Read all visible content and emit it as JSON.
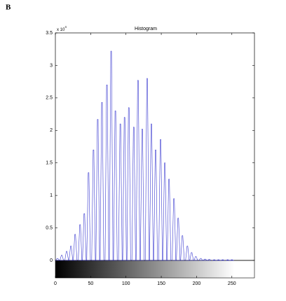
{
  "panel_label": "B",
  "chart_data": {
    "type": "spike",
    "title": "Histogram",
    "y_multiplier": {
      "base": "x 10",
      "exponent": "4"
    },
    "x": [
      3,
      9,
      16,
      22,
      28,
      35,
      41,
      47,
      54,
      60,
      66,
      73,
      79,
      85,
      92,
      98,
      104,
      111,
      117,
      123,
      130,
      136,
      142,
      149,
      155,
      161,
      168,
      174,
      180,
      187,
      193,
      199,
      206,
      212,
      218,
      225,
      231,
      237,
      244,
      250
    ],
    "values": [
      0.03,
      0.08,
      0.14,
      0.22,
      0.4,
      0.55,
      0.72,
      1.35,
      1.7,
      2.17,
      2.43,
      2.7,
      3.22,
      2.3,
      2.1,
      2.2,
      2.35,
      2.05,
      2.77,
      2.02,
      2.8,
      2.1,
      1.7,
      1.86,
      1.5,
      1.25,
      0.95,
      0.65,
      0.38,
      0.22,
      0.12,
      0.06,
      0.03,
      0.02,
      0.015,
      0.01,
      0.01,
      0.01,
      0.01,
      0.01
    ],
    "color": "#3a3ad0",
    "xlim": [
      0,
      282
    ],
    "xticks": [
      0,
      50,
      100,
      150,
      200,
      250
    ],
    "ylim": [
      0,
      3.5
    ],
    "yticks": [
      0,
      0.5,
      1,
      1.5,
      2,
      2.5,
      3,
      3.5
    ]
  }
}
